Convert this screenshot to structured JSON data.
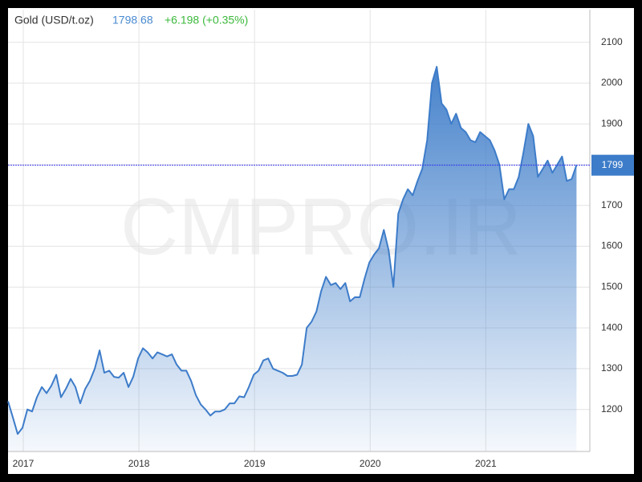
{
  "chart_data": {
    "type": "area",
    "title": "Gold (USD/t.oz)",
    "last_price": 1798.68,
    "change": "+6.198 (+0.35%)",
    "watermark": "CMPRO.IR",
    "price_marker": {
      "value": 1798.68,
      "label": "1799"
    },
    "color": "#3d7cc9",
    "grid": true,
    "xlim": [
      2016.868,
      2021.9
    ],
    "xticks": [
      2017,
      2018,
      2019,
      2020,
      2021
    ],
    "ylim": [
      1097,
      2180
    ],
    "yticks": [
      1200,
      1300,
      1400,
      1500,
      1600,
      1700,
      1800,
      1900,
      2000,
      2100
    ],
    "x": [
      2016.868,
      2016.91,
      2016.951,
      2016.993,
      2017.035,
      2017.076,
      2017.118,
      2017.16,
      2017.201,
      2017.243,
      2017.285,
      2017.326,
      2017.368,
      2017.41,
      2017.451,
      2017.493,
      2017.535,
      2017.576,
      2017.618,
      2017.66,
      2017.701,
      2017.743,
      2017.785,
      2017.826,
      2017.868,
      2017.91,
      2017.951,
      2017.993,
      2018.035,
      2018.076,
      2018.118,
      2018.16,
      2018.201,
      2018.243,
      2018.285,
      2018.326,
      2018.368,
      2018.41,
      2018.451,
      2018.493,
      2018.535,
      2018.576,
      2018.618,
      2018.66,
      2018.701,
      2018.743,
      2018.785,
      2018.826,
      2018.868,
      2018.91,
      2018.951,
      2018.993,
      2019.035,
      2019.076,
      2019.118,
      2019.16,
      2019.201,
      2019.243,
      2019.285,
      2019.326,
      2019.368,
      2019.41,
      2019.451,
      2019.493,
      2019.535,
      2019.576,
      2019.618,
      2019.66,
      2019.701,
      2019.743,
      2019.785,
      2019.826,
      2019.868,
      2019.91,
      2019.951,
      2019.993,
      2020.035,
      2020.076,
      2020.118,
      2020.16,
      2020.201,
      2020.243,
      2020.285,
      2020.326,
      2020.368,
      2020.41,
      2020.451,
      2020.493,
      2020.535,
      2020.576,
      2020.618,
      2020.66,
      2020.701,
      2020.743,
      2020.785,
      2020.826,
      2020.868,
      2020.91,
      2020.951,
      2020.993,
      2021.035,
      2021.076,
      2021.118,
      2021.16,
      2021.201,
      2021.243,
      2021.285,
      2021.326,
      2021.368,
      2021.41,
      2021.451,
      2021.493,
      2021.535,
      2021.576,
      2021.618,
      2021.66,
      2021.701,
      2021.743,
      2021.785
    ],
    "values": [
      1220,
      1180,
      1140,
      1155,
      1200,
      1195,
      1230,
      1255,
      1240,
      1258,
      1285,
      1230,
      1250,
      1275,
      1255,
      1215,
      1250,
      1270,
      1300,
      1345,
      1290,
      1295,
      1280,
      1278,
      1290,
      1255,
      1280,
      1325,
      1350,
      1340,
      1325,
      1340,
      1335,
      1330,
      1335,
      1310,
      1295,
      1295,
      1270,
      1235,
      1212,
      1200,
      1185,
      1195,
      1195,
      1200,
      1215,
      1215,
      1232,
      1230,
      1255,
      1285,
      1295,
      1320,
      1325,
      1300,
      1295,
      1290,
      1282,
      1282,
      1285,
      1310,
      1400,
      1415,
      1440,
      1490,
      1525,
      1505,
      1510,
      1495,
      1510,
      1465,
      1475,
      1475,
      1520,
      1560,
      1580,
      1595,
      1640,
      1590,
      1500,
      1680,
      1715,
      1740,
      1725,
      1760,
      1790,
      1860,
      2000,
      2040,
      1950,
      1935,
      1900,
      1925,
      1890,
      1880,
      1860,
      1855,
      1880,
      1870,
      1860,
      1835,
      1800,
      1715,
      1740,
      1740,
      1770,
      1830,
      1900,
      1870,
      1770,
      1790,
      1810,
      1780,
      1800,
      1820,
      1760,
      1765,
      1799
    ]
  }
}
